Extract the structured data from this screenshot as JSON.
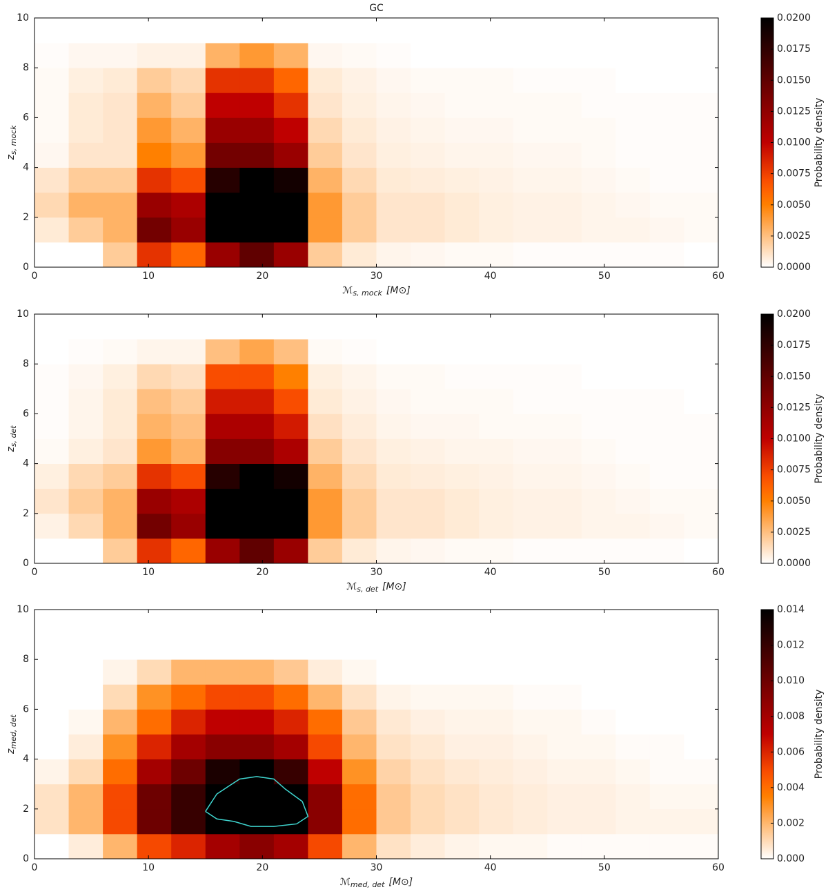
{
  "chart_data": [
    {
      "type": "heatmap",
      "title": "GC",
      "colormap": "gist_heat_r",
      "xlabel": {
        "symbol": "ℳ",
        "sub": "s, mock",
        "unit": "[M⊙]"
      },
      "ylabel": {
        "symbol": "z",
        "sub": "s, mock"
      },
      "colorbar_label": "Probability density",
      "xlim": [
        0,
        60
      ],
      "xticks": [
        0,
        10,
        20,
        30,
        40,
        50,
        60
      ],
      "ylim": [
        0,
        10
      ],
      "yticks": [
        0,
        2,
        4,
        6,
        8,
        10
      ],
      "xbins": [
        0,
        3,
        6,
        9,
        12,
        15,
        18,
        21,
        24,
        27,
        30,
        33,
        36,
        39,
        42,
        45,
        48,
        51,
        54,
        57,
        60
      ],
      "ybins": [
        0,
        1,
        2,
        3,
        4,
        5,
        6,
        7,
        8,
        9,
        10
      ],
      "clim": [
        0,
        0.02
      ],
      "cticks": [
        {
          "value": 0,
          "label": "0.0000"
        },
        {
          "value": 0.0025,
          "label": "0.0025"
        },
        {
          "value": 0.005,
          "label": "0.0050"
        },
        {
          "value": 0.0075,
          "label": "0.0075"
        },
        {
          "value": 0.01,
          "label": "0.0100"
        },
        {
          "value": 0.0125,
          "label": "0.0125"
        },
        {
          "value": 0.015,
          "label": "0.0150"
        },
        {
          "value": 0.0175,
          "label": "0.0175"
        },
        {
          "value": 0.02,
          "label": "0.0200"
        }
      ],
      "z": [
        [
          0,
          0,
          0.002,
          0.008,
          0.006,
          0.012,
          0.015,
          0.012,
          0.002,
          0.0008,
          0.0004,
          0.0003,
          0.0002,
          0.0002,
          0.0001,
          0.0001,
          0.0001,
          0.0001,
          0.0001,
          0
        ],
        [
          0.0008,
          0.002,
          0.003,
          0.014,
          0.012,
          0.02,
          0.02,
          0.02,
          0.004,
          0.002,
          0.001,
          0.001,
          0.0008,
          0.0006,
          0.0005,
          0.0005,
          0.0004,
          0.0004,
          0.0003,
          0.0002
        ],
        [
          0.0015,
          0.003,
          0.003,
          0.012,
          0.011,
          0.02,
          0.02,
          0.02,
          0.004,
          0.002,
          0.001,
          0.001,
          0.0008,
          0.0006,
          0.0005,
          0.0005,
          0.0004,
          0.0003,
          0.0002,
          0.0002
        ],
        [
          0.001,
          0.002,
          0.002,
          0.008,
          0.007,
          0.018,
          0.02,
          0.019,
          0.003,
          0.0015,
          0.0008,
          0.0007,
          0.0006,
          0.0005,
          0.0004,
          0.0004,
          0.0003,
          0.0002,
          0.0001,
          0.0001
        ],
        [
          0.0003,
          0.001,
          0.001,
          0.005,
          0.004,
          0.014,
          0.014,
          0.012,
          0.002,
          0.001,
          0.0006,
          0.0005,
          0.0004,
          0.0004,
          0.0003,
          0.0003,
          0.0002,
          0.0001,
          0.0001,
          0.0001
        ],
        [
          0.0002,
          0.0008,
          0.001,
          0.004,
          0.003,
          0.012,
          0.012,
          0.01,
          0.0015,
          0.0008,
          0.0005,
          0.0004,
          0.0003,
          0.0003,
          0.0002,
          0.0002,
          0.0002,
          0.0001,
          0.0001,
          0.0001
        ],
        [
          0.0002,
          0.0008,
          0.001,
          0.003,
          0.002,
          0.01,
          0.01,
          0.008,
          0.001,
          0.0006,
          0.0004,
          0.0003,
          0.0002,
          0.0002,
          0.0002,
          0.0002,
          0.0001,
          0.0001,
          0.0001,
          0.0001
        ],
        [
          0.0002,
          0.0006,
          0.0008,
          0.002,
          0.0015,
          0.008,
          0.008,
          0.006,
          0.0008,
          0.0005,
          0.0003,
          0.0002,
          0.0002,
          0.0002,
          0.0001,
          0.0001,
          0.0001,
          0,
          0,
          0
        ],
        [
          0.0001,
          0.0003,
          0.0003,
          0.0005,
          0.0005,
          0.003,
          0.004,
          0.003,
          0.0003,
          0.0002,
          0.0001,
          0,
          0,
          0,
          0,
          0,
          0,
          0,
          0,
          0
        ],
        [
          0,
          0,
          0,
          0,
          0,
          0,
          0,
          0,
          0,
          0,
          0,
          0,
          0,
          0,
          0,
          0,
          0,
          0,
          0,
          0
        ]
      ]
    },
    {
      "type": "heatmap",
      "colormap": "gist_heat_r",
      "xlabel": {
        "symbol": "ℳ",
        "sub": "s, det",
        "unit": "[M⊙]"
      },
      "ylabel": {
        "symbol": "z",
        "sub": "s, det"
      },
      "colorbar_label": "Probability density",
      "xlim": [
        0,
        60
      ],
      "xticks": [
        0,
        10,
        20,
        30,
        40,
        50,
        60
      ],
      "ylim": [
        0,
        10
      ],
      "yticks": [
        0,
        2,
        4,
        6,
        8,
        10
      ],
      "xbins": [
        0,
        3,
        6,
        9,
        12,
        15,
        18,
        21,
        24,
        27,
        30,
        33,
        36,
        39,
        42,
        45,
        48,
        51,
        54,
        57,
        60
      ],
      "ybins": [
        0,
        1,
        2,
        3,
        4,
        5,
        6,
        7,
        8,
        9,
        10
      ],
      "clim": [
        0,
        0.02
      ],
      "cticks": [
        {
          "value": 0,
          "label": "0.0000"
        },
        {
          "value": 0.0025,
          "label": "0.0025"
        },
        {
          "value": 0.005,
          "label": "0.0050"
        },
        {
          "value": 0.0075,
          "label": "0.0075"
        },
        {
          "value": 0.01,
          "label": "0.0100"
        },
        {
          "value": 0.0125,
          "label": "0.0125"
        },
        {
          "value": 0.015,
          "label": "0.0150"
        },
        {
          "value": 0.0175,
          "label": "0.0175"
        },
        {
          "value": 0.02,
          "label": "0.0200"
        }
      ],
      "z": [
        [
          0,
          0,
          0.002,
          0.008,
          0.006,
          0.012,
          0.015,
          0.012,
          0.002,
          0.0008,
          0.0004,
          0.0003,
          0.0002,
          0.0002,
          0.0001,
          0.0001,
          0.0001,
          0.0001,
          0.0001,
          0
        ],
        [
          0.0005,
          0.0015,
          0.003,
          0.014,
          0.012,
          0.02,
          0.02,
          0.02,
          0.004,
          0.002,
          0.001,
          0.001,
          0.0008,
          0.0006,
          0.0005,
          0.0005,
          0.0004,
          0.0004,
          0.0003,
          0.0002
        ],
        [
          0.001,
          0.002,
          0.003,
          0.012,
          0.011,
          0.02,
          0.02,
          0.02,
          0.004,
          0.002,
          0.001,
          0.001,
          0.0008,
          0.0006,
          0.0005,
          0.0005,
          0.0004,
          0.0003,
          0.0002,
          0.0002
        ],
        [
          0.0006,
          0.0015,
          0.002,
          0.008,
          0.007,
          0.018,
          0.02,
          0.019,
          0.003,
          0.0015,
          0.0008,
          0.0007,
          0.0006,
          0.0005,
          0.0004,
          0.0004,
          0.0003,
          0.0002,
          0.0001,
          0.0001
        ],
        [
          0.0002,
          0.0006,
          0.001,
          0.004,
          0.003,
          0.013,
          0.013,
          0.011,
          0.002,
          0.001,
          0.0006,
          0.0005,
          0.0004,
          0.0004,
          0.0003,
          0.0003,
          0.0002,
          0.0001,
          0.0001,
          0.0001
        ],
        [
          0.0001,
          0.0004,
          0.0008,
          0.003,
          0.0025,
          0.011,
          0.011,
          0.009,
          0.0012,
          0.0007,
          0.0004,
          0.0003,
          0.0003,
          0.0002,
          0.0002,
          0.0002,
          0.0001,
          0.0001,
          0.0001,
          0.0001
        ],
        [
          0.0001,
          0.0004,
          0.0008,
          0.0025,
          0.002,
          0.009,
          0.009,
          0.007,
          0.0008,
          0.0005,
          0.0003,
          0.0002,
          0.0002,
          0.0002,
          0.0001,
          0.0001,
          0.0001,
          0.0001,
          0.0001,
          0
        ],
        [
          0.0001,
          0.0003,
          0.0006,
          0.0015,
          0.0012,
          0.007,
          0.007,
          0.005,
          0.0006,
          0.0004,
          0.0002,
          0.0002,
          0.0001,
          0.0001,
          0.0001,
          0.0001,
          0,
          0,
          0,
          0
        ],
        [
          0,
          0.0001,
          0.0002,
          0.0004,
          0.0004,
          0.0025,
          0.0035,
          0.0025,
          0.0002,
          0.0001,
          0,
          0,
          0,
          0,
          0,
          0,
          0,
          0,
          0,
          0
        ],
        [
          0,
          0,
          0,
          0,
          0,
          0,
          0,
          0,
          0,
          0,
          0,
          0,
          0,
          0,
          0,
          0,
          0,
          0,
          0,
          0
        ]
      ]
    },
    {
      "type": "heatmap",
      "colormap": "gist_heat_r",
      "xlabel": {
        "symbol": "ℳ",
        "sub": "med, det",
        "unit": "[M⊙]"
      },
      "ylabel": {
        "symbol": "z",
        "sub": "med, det"
      },
      "colorbar_label": "Probability density",
      "xlim": [
        0,
        60
      ],
      "xticks": [
        0,
        10,
        20,
        30,
        40,
        50,
        60
      ],
      "ylim": [
        0,
        10
      ],
      "yticks": [
        0,
        2,
        4,
        6,
        8,
        10
      ],
      "xbins": [
        0,
        3,
        6,
        9,
        12,
        15,
        18,
        21,
        24,
        27,
        30,
        33,
        36,
        39,
        42,
        45,
        48,
        51,
        54,
        57,
        60
      ],
      "ybins": [
        0,
        1,
        2,
        3,
        4,
        5,
        6,
        7,
        8,
        9,
        10
      ],
      "clim": [
        0,
        0.014
      ],
      "cticks": [
        {
          "value": 0,
          "label": "0.000"
        },
        {
          "value": 0.002,
          "label": "0.002"
        },
        {
          "value": 0.004,
          "label": "0.004"
        },
        {
          "value": 0.006,
          "label": "0.006"
        },
        {
          "value": 0.008,
          "label": "0.008"
        },
        {
          "value": 0.01,
          "label": "0.010"
        },
        {
          "value": 0.012,
          "label": "0.012"
        },
        {
          "value": 0.014,
          "label": "0.014"
        }
      ],
      "z": [
        [
          0,
          0.0005,
          0.002,
          0.005,
          0.006,
          0.008,
          0.009,
          0.008,
          0.005,
          0.002,
          0.0008,
          0.0005,
          0.0003,
          0.0002,
          0.0002,
          0.0001,
          0.0001,
          0.0001,
          0.0001,
          0.0001
        ],
        [
          0.0008,
          0.002,
          0.005,
          0.01,
          0.012,
          0.014,
          0.014,
          0.014,
          0.009,
          0.004,
          0.0015,
          0.001,
          0.0008,
          0.0006,
          0.0005,
          0.0004,
          0.0004,
          0.0003,
          0.0003,
          0.0003
        ],
        [
          0.0008,
          0.002,
          0.005,
          0.01,
          0.012,
          0.014,
          0.014,
          0.014,
          0.009,
          0.004,
          0.0015,
          0.001,
          0.0008,
          0.0006,
          0.0005,
          0.0004,
          0.0004,
          0.0003,
          0.0002,
          0.0002
        ],
        [
          0.0003,
          0.001,
          0.004,
          0.008,
          0.01,
          0.013,
          0.014,
          0.012,
          0.007,
          0.003,
          0.0012,
          0.0008,
          0.0006,
          0.0005,
          0.0004,
          0.0003,
          0.0003,
          0.0002,
          0.0001,
          0.0001
        ],
        [
          0,
          0.0005,
          0.003,
          0.006,
          0.008,
          0.009,
          0.009,
          0.008,
          0.005,
          0.002,
          0.0008,
          0.0006,
          0.0004,
          0.0004,
          0.0003,
          0.0002,
          0.0002,
          0.0001,
          0.0001,
          0
        ],
        [
          0,
          0.0002,
          0.002,
          0.004,
          0.006,
          0.007,
          0.007,
          0.006,
          0.004,
          0.0015,
          0.0006,
          0.0004,
          0.0003,
          0.0003,
          0.0002,
          0.0002,
          0.0001,
          0,
          0,
          0
        ],
        [
          0,
          0,
          0.001,
          0.003,
          0.004,
          0.005,
          0.005,
          0.004,
          0.002,
          0.0008,
          0.0003,
          0.0002,
          0.0002,
          0.0002,
          0.0001,
          0.0001,
          0,
          0,
          0,
          0
        ],
        [
          0,
          0,
          0.0003,
          0.001,
          0.002,
          0.002,
          0.002,
          0.0015,
          0.0005,
          0.0002,
          0,
          0,
          0,
          0,
          0,
          0,
          0,
          0,
          0,
          0
        ],
        [
          0,
          0,
          0,
          0,
          0,
          0,
          0,
          0,
          0,
          0,
          0,
          0,
          0,
          0,
          0,
          0,
          0,
          0,
          0,
          0
        ],
        [
          0,
          0,
          0,
          0,
          0,
          0,
          0,
          0,
          0,
          0,
          0,
          0,
          0,
          0,
          0,
          0,
          0,
          0,
          0,
          0
        ]
      ],
      "contour": {
        "color": "#3fd6d0",
        "x": [
          15,
          16,
          17,
          18,
          19.5,
          21,
          22,
          23.5,
          24,
          23,
          21,
          19,
          17.5,
          16,
          15
        ],
        "y": [
          1.9,
          2.6,
          2.9,
          3.2,
          3.3,
          3.2,
          2.8,
          2.3,
          1.7,
          1.4,
          1.3,
          1.3,
          1.5,
          1.6,
          1.9
        ]
      }
    }
  ]
}
